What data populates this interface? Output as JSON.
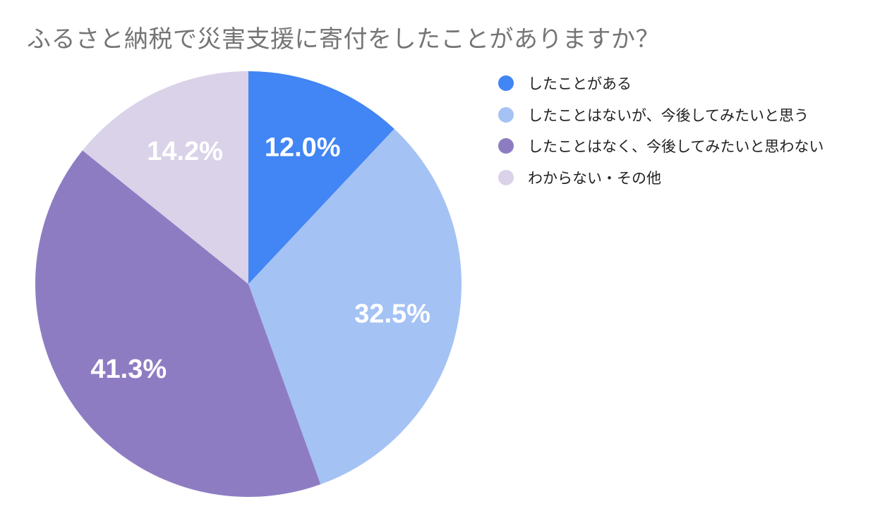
{
  "chart_data": {
    "type": "pie",
    "title": "ふるさと納税で災害支援に寄付をしたことがありますか？",
    "legend_position": "right",
    "slices": [
      {
        "label": "したことがある",
        "value": 12.0,
        "display": "12.0%",
        "color": "#4285f4"
      },
      {
        "label": "したことはないが、今後してみたいと思う",
        "value": 32.5,
        "display": "32.5%",
        "color": "#a4c2f4"
      },
      {
        "label": "したことはなく、今後してみたいと思わない",
        "value": 41.3,
        "display": "41.3%",
        "color": "#8e7cc3"
      },
      {
        "label": "わからない・その他",
        "value": 14.2,
        "display": "14.2%",
        "color": "#d9d2e9"
      }
    ]
  }
}
